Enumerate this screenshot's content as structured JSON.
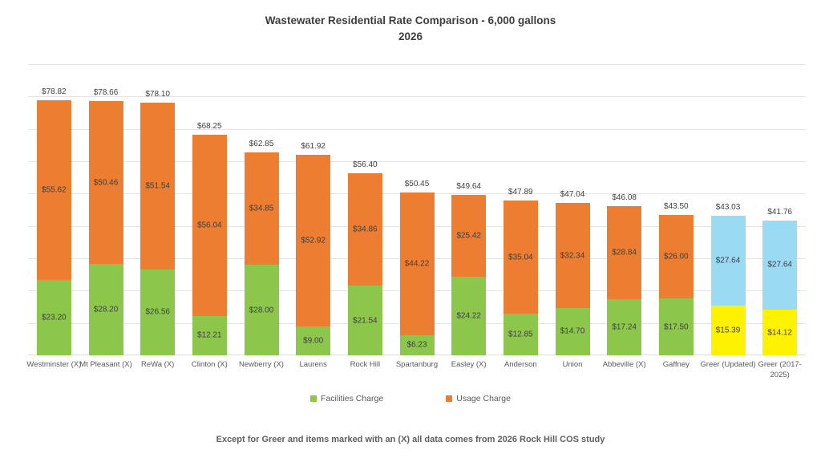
{
  "title": {
    "line1": "Wastewater Residential Rate Comparison - 6,000 gallons",
    "line2": "2026"
  },
  "footnote": "Except for Greer and items marked with an (X) all data comes from 2026 Rock Hill COS study",
  "chart_data": {
    "type": "bar",
    "stacked": true,
    "title": "Wastewater Residential Rate Comparison - 6,000 gallons 2026",
    "categories": [
      "Westminster (X)",
      "Mt Pleasant (X)",
      "ReWa (X)",
      "Clinton (X)",
      "Newberry (X)",
      "Laurens",
      "Rock Hill",
      "Spartanburg",
      "Easley (X)",
      "Anderson",
      "Union",
      "Abbeville (X)",
      "Gaffney",
      "Greer (Updated)",
      "Greer (2017-2025)"
    ],
    "series": [
      {
        "name": "Facilities Charge",
        "color": "#8CC74B",
        "values": [
          23.2,
          28.2,
          26.56,
          12.21,
          28.0,
          9.0,
          21.54,
          6.23,
          24.22,
          12.85,
          14.7,
          17.24,
          17.5,
          15.39,
          14.12
        ]
      },
      {
        "name": "Usage Charge",
        "color": "#ED7D31",
        "values": [
          55.62,
          50.46,
          51.54,
          56.04,
          34.85,
          52.92,
          34.86,
          44.22,
          25.42,
          35.04,
          32.34,
          28.84,
          26.0,
          27.64,
          27.64
        ]
      }
    ],
    "totals": [
      78.82,
      78.66,
      78.1,
      68.25,
      62.85,
      61.92,
      56.4,
      50.45,
      49.64,
      47.89,
      47.04,
      46.08,
      43.5,
      43.03,
      41.76
    ],
    "highlight_categories": [
      "Greer (Updated)",
      "Greer (2017-2025)"
    ],
    "highlight_colors": {
      "facilities": "#FFF200",
      "usage": "#9BDAF3"
    },
    "value_prefix": "$",
    "ylim": [
      0,
      90
    ],
    "gridline_step": 10,
    "y_axis_labels_visible": false,
    "legend_position": "bottom",
    "grid": true,
    "xlabel": "",
    "ylabel": ""
  }
}
